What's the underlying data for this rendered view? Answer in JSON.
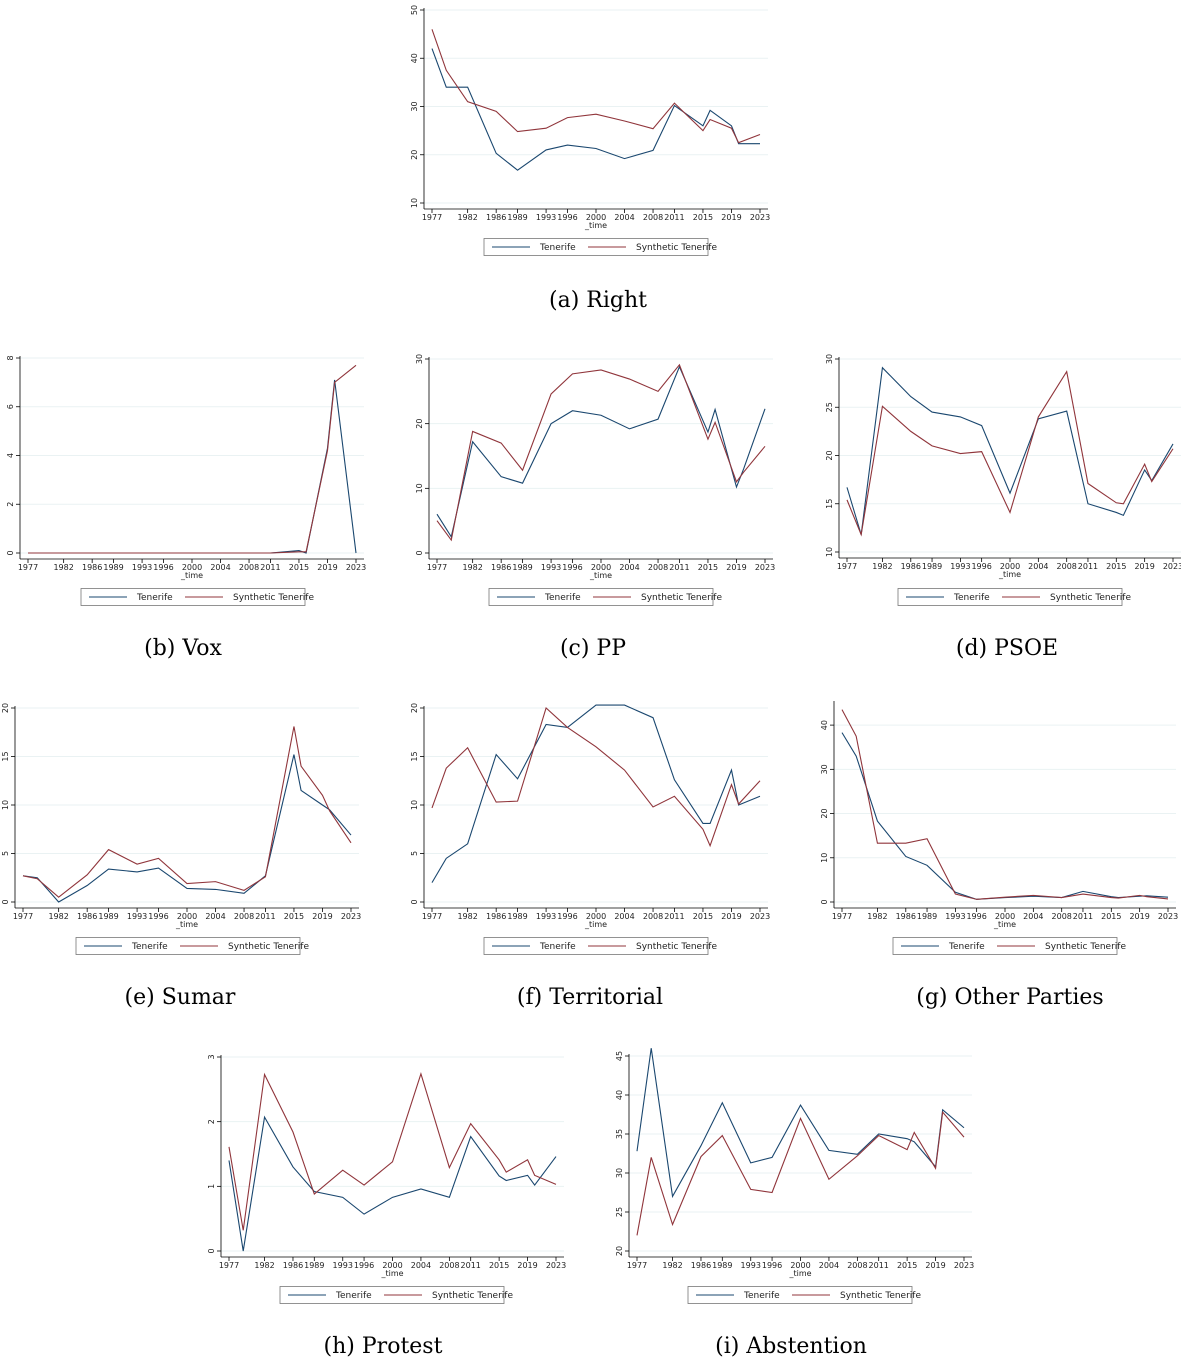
{
  "chart_data": [
    {
      "type": "line",
      "caption": "(a) Right",
      "xlabel": "_time",
      "grid": true,
      "x": [
        1977,
        1979,
        1982,
        1986,
        1989,
        1993,
        1996,
        2000,
        2004,
        2008,
        2011,
        2015,
        2016,
        2019,
        2020,
        2023
      ],
      "xlim": [
        1977,
        2023
      ],
      "xticks": [
        1977,
        1982,
        1986,
        1989,
        1993,
        1996,
        2000,
        2004,
        2008,
        2011,
        2015,
        2019,
        2023
      ],
      "ylim": [
        10,
        50
      ],
      "yticks": [
        10,
        20,
        30,
        40,
        50
      ],
      "series": [
        {
          "name": "Tenerife",
          "color": "#1a476f",
          "values": [
            42,
            34,
            34,
            20.3,
            16.8,
            21,
            22,
            21.3,
            19.2,
            20.9,
            30.2,
            26,
            29.2,
            26,
            22.3,
            22.3
          ]
        },
        {
          "name": "Synthetic Tenerife",
          "color": "#90353b",
          "values": [
            46,
            37.5,
            31,
            29,
            24.8,
            25.5,
            27.7,
            28.4,
            27,
            25.4,
            30.7,
            25,
            27.3,
            25.5,
            22.5,
            24.2
          ]
        }
      ]
    },
    {
      "type": "line",
      "caption": "(b) Vox",
      "xlabel": "_time",
      "grid": true,
      "x": [
        1977,
        1979,
        1982,
        1986,
        1989,
        1993,
        1996,
        2000,
        2004,
        2008,
        2011,
        2015,
        2016,
        2019,
        2020,
        2023
      ],
      "xlim": [
        1977,
        2023
      ],
      "xticks": [
        1977,
        1982,
        1986,
        1989,
        1993,
        1996,
        2000,
        2004,
        2008,
        2011,
        2015,
        2019,
        2023
      ],
      "ylim": [
        0,
        8
      ],
      "yticks": [
        0,
        2,
        4,
        6,
        8
      ],
      "series": [
        {
          "name": "Tenerife",
          "color": "#1a476f",
          "values": [
            0,
            0,
            0,
            0,
            0,
            0,
            0,
            0,
            0,
            0,
            0,
            0.1,
            0,
            4.3,
            7.1,
            0
          ]
        },
        {
          "name": "Synthetic Tenerife",
          "color": "#90353b",
          "values": [
            0,
            0,
            0,
            0,
            0,
            0,
            0,
            0,
            0,
            0,
            0,
            0.05,
            0.05,
            4.2,
            7,
            7.7
          ]
        }
      ]
    },
    {
      "type": "line",
      "caption": "(c) PP",
      "xlabel": "_time",
      "grid": true,
      "x": [
        1977,
        1979,
        1982,
        1986,
        1989,
        1993,
        1996,
        2000,
        2004,
        2008,
        2011,
        2015,
        2016,
        2019,
        2020,
        2023
      ],
      "xlim": [
        1977,
        2023
      ],
      "xticks": [
        1977,
        1982,
        1986,
        1989,
        1993,
        1996,
        2000,
        2004,
        2008,
        2011,
        2015,
        2019,
        2023
      ],
      "ylim": [
        0,
        30
      ],
      "yticks": [
        0,
        10,
        20,
        30
      ],
      "series": [
        {
          "name": "Tenerife",
          "color": "#1a476f",
          "values": [
            6,
            2.5,
            17.2,
            11.8,
            10.8,
            20,
            22,
            21.3,
            19.2,
            20.7,
            28.8,
            18.7,
            22.2,
            10.2,
            13,
            22.3
          ]
        },
        {
          "name": "Synthetic Tenerife",
          "color": "#90353b",
          "values": [
            5,
            2,
            18.8,
            17,
            12.8,
            24.6,
            27.7,
            28.3,
            26.9,
            25,
            29.1,
            17.6,
            20.2,
            11,
            12.5,
            16.5
          ]
        }
      ]
    },
    {
      "type": "line",
      "caption": "(d) PSOE",
      "xlabel": "_time",
      "grid": true,
      "x": [
        1977,
        1979,
        1982,
        1986,
        1989,
        1993,
        1996,
        2000,
        2004,
        2008,
        2011,
        2015,
        2016,
        2019,
        2020,
        2023
      ],
      "xlim": [
        1977,
        2023
      ],
      "xticks": [
        1977,
        1982,
        1986,
        1989,
        1993,
        1996,
        2000,
        2004,
        2008,
        2011,
        2015,
        2019,
        2023
      ],
      "ylim": [
        10,
        30
      ],
      "yticks": [
        10,
        15,
        20,
        25,
        30
      ],
      "series": [
        {
          "name": "Tenerife",
          "color": "#1a476f",
          "values": [
            16.7,
            11.8,
            29.1,
            26.1,
            24.5,
            24,
            23.1,
            16.1,
            23.8,
            24.6,
            15,
            14.1,
            13.8,
            18.5,
            17.4,
            21.2
          ]
        },
        {
          "name": "Synthetic Tenerife",
          "color": "#90353b",
          "values": [
            15.4,
            11.8,
            25.1,
            22.5,
            21,
            20.2,
            20.4,
            14.1,
            24,
            28.7,
            17.1,
            15.1,
            15,
            19.1,
            17.3,
            20.7
          ]
        }
      ]
    },
    {
      "type": "line",
      "caption": "(e) Sumar",
      "xlabel": "_time",
      "grid": true,
      "x": [
        1977,
        1979,
        1982,
        1986,
        1989,
        1993,
        1996,
        2000,
        2004,
        2008,
        2011,
        2015,
        2016,
        2019,
        2020,
        2023
      ],
      "xlim": [
        1977,
        2023
      ],
      "xticks": [
        1977,
        1982,
        1986,
        1989,
        1993,
        1996,
        2000,
        2004,
        2008,
        2011,
        2015,
        2019,
        2023
      ],
      "ylim": [
        0,
        20
      ],
      "yticks": [
        0,
        5,
        10,
        15,
        20
      ],
      "series": [
        {
          "name": "Tenerife",
          "color": "#1a476f",
          "values": [
            2.7,
            2.5,
            0,
            1.7,
            3.4,
            3.1,
            3.5,
            1.4,
            1.3,
            0.9,
            2.7,
            15.2,
            11.5,
            10,
            9.5,
            6.9
          ]
        },
        {
          "name": "Synthetic Tenerife",
          "color": "#90353b",
          "values": [
            2.7,
            2.4,
            0.5,
            2.8,
            5.4,
            3.9,
            4.5,
            1.9,
            2.1,
            1.2,
            2.6,
            18.1,
            14,
            11,
            9.4,
            6.1
          ]
        }
      ]
    },
    {
      "type": "line",
      "caption": "(f) Territorial",
      "xlabel": "_time",
      "grid": true,
      "x": [
        1977,
        1979,
        1982,
        1986,
        1989,
        1993,
        1996,
        2000,
        2004,
        2008,
        2011,
        2015,
        2016,
        2019,
        2020,
        2023
      ],
      "xlim": [
        1977,
        2023
      ],
      "xticks": [
        1977,
        1982,
        1986,
        1989,
        1993,
        1996,
        2000,
        2004,
        2008,
        2011,
        2015,
        2019,
        2023
      ],
      "ylim": [
        0,
        20
      ],
      "yticks": [
        0,
        5,
        10,
        15,
        20
      ],
      "series": [
        {
          "name": "Tenerife",
          "color": "#1a476f",
          "values": [
            2,
            4.5,
            6,
            15.2,
            12.7,
            18.3,
            18,
            20.3,
            20.3,
            19,
            12.6,
            8.1,
            8.1,
            13.6,
            10,
            10.9
          ]
        },
        {
          "name": "Synthetic Tenerife",
          "color": "#90353b",
          "values": [
            9.7,
            13.8,
            15.9,
            10.3,
            10.4,
            20,
            18,
            16,
            13.6,
            9.8,
            10.9,
            7.5,
            5.8,
            12.1,
            10.1,
            12.5
          ]
        }
      ]
    },
    {
      "type": "line",
      "caption": "(g) Other Parties",
      "xlabel": "_time",
      "grid": true,
      "x": [
        1977,
        1979,
        1982,
        1986,
        1989,
        1993,
        1996,
        2000,
        2004,
        2008,
        2011,
        2015,
        2016,
        2019,
        2020,
        2023
      ],
      "xlim": [
        1977,
        2023
      ],
      "xticks": [
        1977,
        1982,
        1986,
        1989,
        1993,
        1996,
        2000,
        2004,
        2008,
        2011,
        2015,
        2019,
        2023
      ],
      "ylim": [
        0,
        45
      ],
      "yticks": [
        0,
        10,
        20,
        30,
        40
      ],
      "series": [
        {
          "name": "Tenerife",
          "color": "#1a476f",
          "values": [
            38.3,
            33,
            18.3,
            10.3,
            8.3,
            2.2,
            0.6,
            1,
            1.3,
            1,
            2.4,
            1.2,
            1,
            1.3,
            1.4,
            1.1
          ]
        },
        {
          "name": "Synthetic Tenerife",
          "color": "#90353b",
          "values": [
            43.5,
            37.5,
            13.3,
            13.3,
            14.3,
            1.8,
            0.6,
            1.1,
            1.5,
            1,
            1.8,
            1,
            0.9,
            1.5,
            1.2,
            0.7
          ]
        }
      ]
    },
    {
      "type": "line",
      "caption": "(h) Protest",
      "xlabel": "_time",
      "grid": true,
      "x": [
        1977,
        1979,
        1982,
        1986,
        1989,
        1993,
        1996,
        2000,
        2004,
        2008,
        2011,
        2015,
        2016,
        2019,
        2020,
        2023
      ],
      "xlim": [
        1977,
        2023
      ],
      "xticks": [
        1977,
        1982,
        1986,
        1989,
        1993,
        1996,
        2000,
        2004,
        2008,
        2011,
        2015,
        2019,
        2023
      ],
      "ylim": [
        0,
        3
      ],
      "yticks": [
        0,
        1,
        2,
        3
      ],
      "series": [
        {
          "name": "Tenerife",
          "color": "#1a476f",
          "values": [
            1.4,
            0,
            2.07,
            1.3,
            0.92,
            0.83,
            0.57,
            0.83,
            0.96,
            0.83,
            1.77,
            1.16,
            1.09,
            1.17,
            1.02,
            1.46
          ]
        },
        {
          "name": "Synthetic Tenerife",
          "color": "#90353b",
          "values": [
            1.61,
            0.32,
            2.73,
            1.84,
            0.88,
            1.25,
            1.02,
            1.38,
            2.74,
            1.29,
            1.97,
            1.41,
            1.22,
            1.41,
            1.17,
            1.03
          ]
        }
      ]
    },
    {
      "type": "line",
      "caption": "(i) Abstention",
      "xlabel": "_time",
      "grid": true,
      "x": [
        1977,
        1979,
        1982,
        1986,
        1989,
        1993,
        1996,
        2000,
        2004,
        2008,
        2011,
        2015,
        2016,
        2019,
        2020,
        2023
      ],
      "xlim": [
        1977,
        2023
      ],
      "xticks": [
        1977,
        1982,
        1986,
        1989,
        1993,
        1996,
        2000,
        2004,
        2008,
        2011,
        2015,
        2019,
        2023
      ],
      "ylim": [
        20,
        45
      ],
      "yticks": [
        20,
        25,
        30,
        35,
        40,
        45
      ],
      "series": [
        {
          "name": "Tenerife",
          "color": "#1a476f",
          "values": [
            32.8,
            46,
            27,
            33.5,
            39,
            31.3,
            32,
            38.7,
            32.9,
            32.4,
            35,
            34.4,
            34,
            30.8,
            38.1,
            35.8
          ]
        },
        {
          "name": "Synthetic Tenerife",
          "color": "#90353b",
          "values": [
            22,
            32,
            23.4,
            32.1,
            34.8,
            27.9,
            27.5,
            37,
            29.2,
            32.2,
            34.8,
            33,
            35.2,
            30.6,
            37.8,
            34.6
          ]
        }
      ]
    }
  ]
}
